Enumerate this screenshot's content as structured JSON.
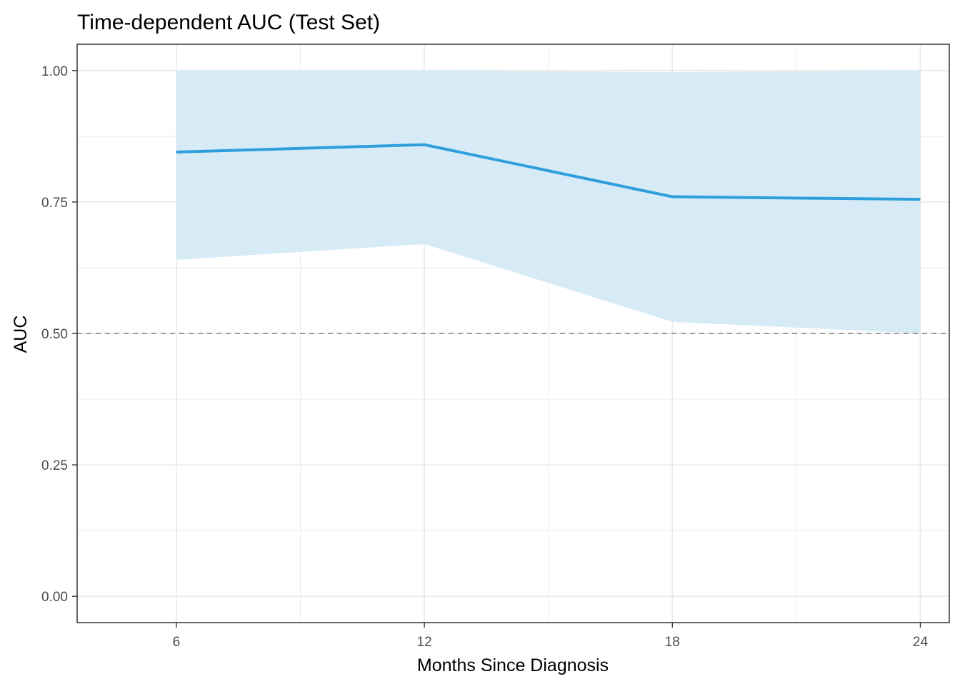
{
  "chart_data": {
    "type": "line",
    "title": "Time-dependent AUC (Test Set)",
    "xlabel": "Months Since Diagnosis",
    "ylabel": "AUC",
    "x": [
      6,
      12,
      18,
      24
    ],
    "series": [
      {
        "values": [
          0.845,
          0.859,
          0.76,
          0.755
        ],
        "lower": [
          0.64,
          0.67,
          0.522,
          0.5
        ],
        "upper": [
          1.0,
          1.0,
          0.997,
          1.0
        ]
      }
    ],
    "reference_line": {
      "y": 0.5,
      "style": "dashed"
    },
    "xlim": [
      3.6,
      24.7
    ],
    "ylim": [
      -0.05,
      1.05
    ],
    "x_ticks": [
      "6",
      "12",
      "18",
      "24"
    ],
    "y_ticks": [
      "0.00",
      "0.25",
      "0.50",
      "0.75",
      "1.00"
    ],
    "grid": true,
    "colors": {
      "line": "#2e9fdc",
      "ribbon": "#d5eaf7",
      "reference": "#7f7f7f",
      "grid": "#ebebeb",
      "border": "#333333"
    }
  }
}
